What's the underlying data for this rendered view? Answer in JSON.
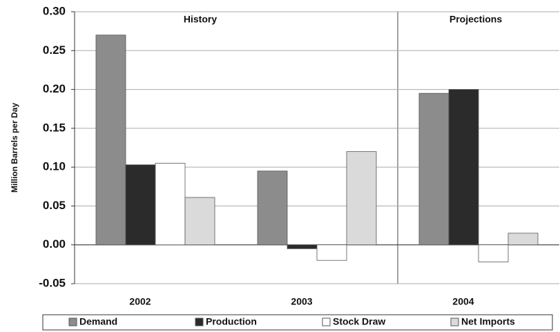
{
  "chart_data": {
    "type": "bar",
    "y_label": "Million Barrels per Day",
    "annotations": [
      "History",
      "Projections"
    ],
    "categories": [
      "2002",
      "2003",
      "2004"
    ],
    "series": [
      {
        "name": "Demand",
        "color": "#8c8c8c",
        "values": [
          0.27,
          0.095,
          0.195
        ]
      },
      {
        "name": "Production",
        "color": "#2b2b2b",
        "values": [
          0.103,
          -0.005,
          0.2
        ]
      },
      {
        "name": "Stock Draw",
        "color": "#ffffff",
        "values": [
          0.105,
          -0.02,
          -0.022
        ]
      },
      {
        "name": "Net Imports",
        "color": "#dadada",
        "values": [
          0.061,
          0.12,
          0.015
        ]
      }
    ],
    "ylim": [
      -0.05,
      0.3
    ],
    "yticks": [
      {
        "value": -0.05,
        "label": "-0.05"
      },
      {
        "value": 0,
        "label": "0.00"
      },
      0.05,
      {
        "value": 0.1,
        "label": "0.10"
      },
      0.15,
      {
        "value": 0.2,
        "label": "0.20"
      },
      0.25,
      {
        "value": 0.3,
        "label": "0.30"
      }
    ],
    "grid": true
  }
}
